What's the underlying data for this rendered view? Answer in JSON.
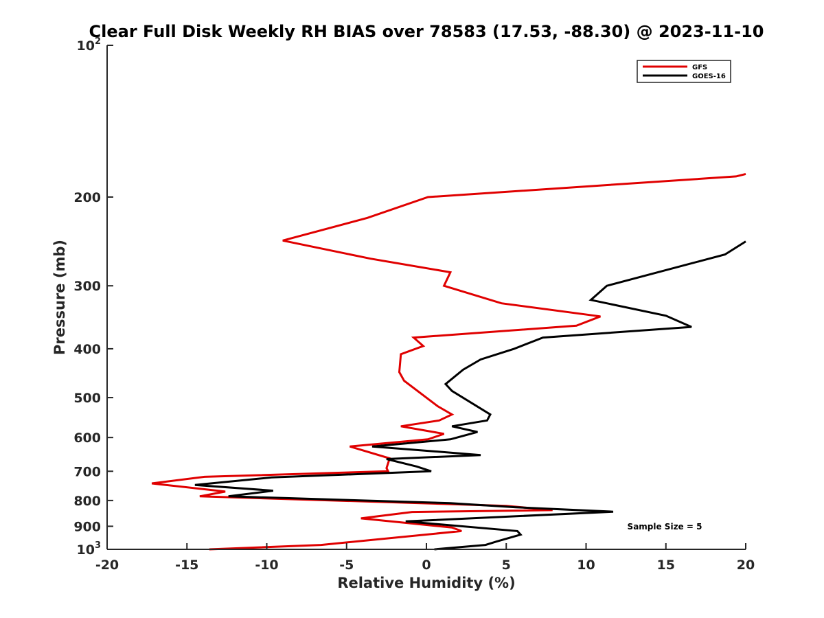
{
  "chart_data": {
    "type": "line",
    "title": "Clear Full Disk Weekly RH BIAS over 78583 (17.53, -88.30) @ 2023-11-10",
    "xlabel": "Relative Humidity (%)",
    "ylabel": "Pressure (mb)",
    "xlim": [
      -20,
      20
    ],
    "ylim": [
      100,
      1000
    ],
    "y_scale": "log",
    "y_reversed": true,
    "x_ticks": [
      "-20",
      "-15",
      "-10",
      "-5",
      "0",
      "5",
      "10",
      "15",
      "20"
    ],
    "y_ticks": [
      {
        "value": 100,
        "base": "10",
        "exp": "2"
      },
      {
        "value": 200,
        "label": "200"
      },
      {
        "value": 300,
        "label": "300"
      },
      {
        "value": 400,
        "label": "400"
      },
      {
        "value": 500,
        "label": "500"
      },
      {
        "value": 600,
        "label": "600"
      },
      {
        "value": 700,
        "label": "700"
      },
      {
        "value": 800,
        "label": "800"
      },
      {
        "value": 900,
        "label": "900"
      },
      {
        "value": 1000,
        "base": "10",
        "exp": "3"
      }
    ],
    "legend": {
      "position": "top-right"
    },
    "annotation": "Sample Size = 5",
    "series": [
      {
        "name": "GFS",
        "color": "#e00000",
        "points": [
          [
            20,
            180
          ],
          [
            19.4,
            182
          ],
          [
            0.1,
            200
          ],
          [
            -3.7,
            220
          ],
          [
            -9,
            244
          ],
          [
            -3.5,
            265
          ],
          [
            1.5,
            282
          ],
          [
            1.1,
            300
          ],
          [
            4.7,
            325
          ],
          [
            10.9,
            345
          ],
          [
            9.4,
            360
          ],
          [
            -0.8,
            380
          ],
          [
            -0.2,
            395
          ],
          [
            -1.6,
            410
          ],
          [
            -1.7,
            445
          ],
          [
            -1.4,
            463
          ],
          [
            0.7,
            520
          ],
          [
            1.6,
            540
          ],
          [
            0.8,
            555
          ],
          [
            -1.6,
            570
          ],
          [
            1.1,
            590
          ],
          [
            0.1,
            605
          ],
          [
            -4.8,
            625
          ],
          [
            -2.3,
            660
          ],
          [
            -2.5,
            690
          ],
          [
            -2.4,
            700
          ],
          [
            -13.9,
            718
          ],
          [
            -17.2,
            740
          ],
          [
            -12.6,
            768
          ],
          [
            -14.2,
            785
          ],
          [
            5,
            820
          ],
          [
            7.9,
            836
          ],
          [
            -0.9,
            843
          ],
          [
            -4.1,
            868
          ],
          [
            1.6,
            905
          ],
          [
            2.2,
            920
          ],
          [
            -6.6,
            980
          ],
          [
            -13.6,
            1000
          ]
        ]
      },
      {
        "name": "GOES-16",
        "color": "#000000",
        "points": [
          [
            20,
            245
          ],
          [
            18.7,
            260
          ],
          [
            11.3,
            300
          ],
          [
            10.3,
            320
          ],
          [
            15,
            344
          ],
          [
            16.6,
            362
          ],
          [
            7.3,
            380
          ],
          [
            5.5,
            400
          ],
          [
            3.4,
            420
          ],
          [
            2.3,
            440
          ],
          [
            1.2,
            470
          ],
          [
            1.6,
            485
          ],
          [
            4,
            540
          ],
          [
            3.8,
            555
          ],
          [
            1.6,
            570
          ],
          [
            3.2,
            585
          ],
          [
            1.5,
            605
          ],
          [
            -3.4,
            625
          ],
          [
            3.4,
            650
          ],
          [
            -2.5,
            662
          ],
          [
            -0.6,
            685
          ],
          [
            0.3,
            700
          ],
          [
            -9.7,
            720
          ],
          [
            -14.5,
            745
          ],
          [
            -9.6,
            765
          ],
          [
            -12.4,
            785
          ],
          [
            1.5,
            810
          ],
          [
            5.6,
            825
          ],
          [
            11.7,
            842
          ],
          [
            -1.3,
            880
          ],
          [
            5.7,
            920
          ],
          [
            5.9,
            935
          ],
          [
            4.4,
            965
          ],
          [
            3.7,
            980
          ],
          [
            0.5,
            1000
          ]
        ]
      }
    ]
  }
}
